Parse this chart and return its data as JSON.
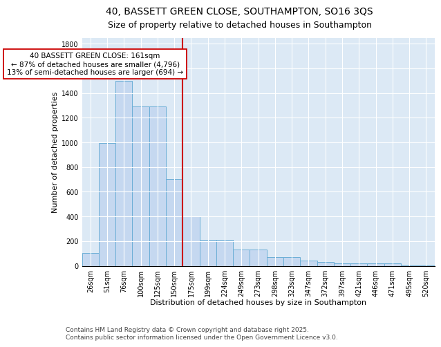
{
  "title": "40, BASSETT GREEN CLOSE, SOUTHAMPTON, SO16 3QS",
  "subtitle": "Size of property relative to detached houses in Southampton",
  "xlabel": "Distribution of detached houses by size in Southampton",
  "ylabel": "Number of detached properties",
  "categories": [
    "26sqm",
    "51sqm",
    "76sqm",
    "100sqm",
    "125sqm",
    "150sqm",
    "175sqm",
    "199sqm",
    "224sqm",
    "249sqm",
    "273sqm",
    "298sqm",
    "323sqm",
    "347sqm",
    "372sqm",
    "397sqm",
    "421sqm",
    "446sqm",
    "471sqm",
    "495sqm",
    "520sqm"
  ],
  "values": [
    105,
    995,
    1500,
    1290,
    1290,
    705,
    400,
    210,
    210,
    130,
    130,
    70,
    70,
    42,
    30,
    20,
    18,
    18,
    18,
    5,
    3
  ],
  "bar_color": "#c5d8f0",
  "bar_edge_color": "#6baed6",
  "vline_color": "#cc0000",
  "vline_x_idx": 6,
  "annotation_text": "40 BASSETT GREEN CLOSE: 161sqm\n← 87% of detached houses are smaller (4,796)\n13% of semi-detached houses are larger (694) →",
  "annotation_box_facecolor": "#ffffff",
  "annotation_box_edgecolor": "#cc0000",
  "ylim": [
    0,
    1850
  ],
  "yticks": [
    0,
    200,
    400,
    600,
    800,
    1000,
    1200,
    1400,
    1600,
    1800
  ],
  "bg_color": "#dce9f5",
  "plot_bg_color": "#dce9f5",
  "footer": "Contains HM Land Registry data © Crown copyright and database right 2025.\nContains public sector information licensed under the Open Government Licence v3.0.",
  "title_fontsize": 10,
  "axis_label_fontsize": 8,
  "tick_fontsize": 7,
  "footer_fontsize": 6.5,
  "ann_fontsize": 7.5
}
